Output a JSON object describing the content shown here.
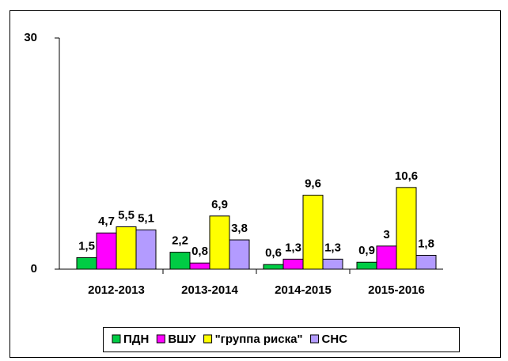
{
  "chart_data": {
    "type": "bar",
    "categories": [
      "2012-2013",
      "2013-2014",
      "2014-2015",
      "2015-2016"
    ],
    "series": [
      {
        "name": "ПДН",
        "color": "#00cc44",
        "values": [
          1.5,
          2.2,
          0.6,
          0.9
        ],
        "value_labels": [
          "1,5",
          "2,2",
          "0,6",
          "0,9"
        ]
      },
      {
        "name": "ВШУ",
        "color": "#ff00ff",
        "values": [
          4.7,
          0.8,
          1.3,
          3
        ],
        "value_labels": [
          "4,7",
          "0,8",
          "1,3",
          "3"
        ]
      },
      {
        "name": "\"группа риска\"",
        "color": "#ffff00",
        "values": [
          5.5,
          6.9,
          9.6,
          10.6
        ],
        "value_labels": [
          "5,5",
          "6,9",
          "9,6",
          "10,6"
        ]
      },
      {
        "name": "СНС",
        "color": "#b39bff",
        "values": [
          5.1,
          3.8,
          1.3,
          1.8
        ],
        "value_labels": [
          "5,1",
          "3,8",
          "1,3",
          "1,8"
        ]
      }
    ],
    "ylim": [
      0,
      30
    ],
    "yticks": [
      0,
      30
    ],
    "grid": false
  }
}
